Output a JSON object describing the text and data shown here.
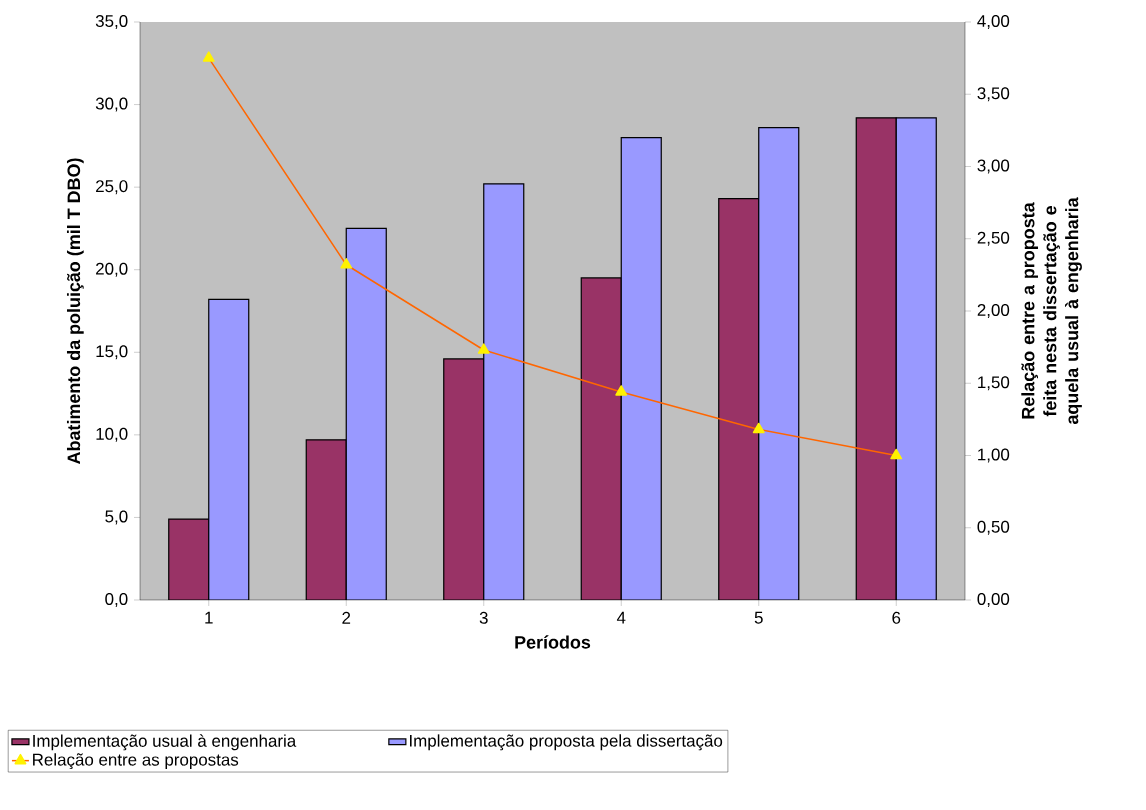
{
  "chart_data": {
    "type": "bar",
    "xlabel": "Períodos",
    "ylabel": "Abatimento da poluição (mil T DBO)",
    "y2label": "Relação entre a proposta feita nesta dissertação e aquela usual à engenharia",
    "categories": [
      "1",
      "2",
      "3",
      "4",
      "5",
      "6"
    ],
    "series": [
      {
        "name": "Implementação usual à engenharia",
        "color": "#993366",
        "values": [
          4.9,
          9.7,
          14.6,
          19.5,
          24.3,
          29.2
        ]
      },
      {
        "name": "Implementação proposta pela dissertação",
        "color": "#9999ff",
        "values": [
          18.2,
          22.5,
          25.2,
          28.0,
          28.6,
          29.2
        ]
      },
      {
        "name": "Relação entre as propostas",
        "type": "line",
        "axis": "y2",
        "color": "#ff6600",
        "marker": "triangle",
        "values": [
          3.75,
          2.32,
          1.73,
          1.44,
          1.18,
          1.0
        ]
      }
    ],
    "ylim": [
      0,
      35
    ],
    "yticks": [
      {
        "value": 0,
        "label": "0,0"
      },
      {
        "value": 5,
        "label": "5,0"
      },
      {
        "value": 10,
        "label": "10,0"
      },
      {
        "value": 15,
        "label": "15,0"
      },
      {
        "value": 20,
        "label": "20,0"
      },
      {
        "value": 25,
        "label": "25,0"
      },
      {
        "value": 30,
        "label": "30,0"
      },
      {
        "value": 35,
        "label": "35,0"
      }
    ],
    "y2lim": [
      0,
      4
    ],
    "y2ticks": [
      {
        "value": 0,
        "label": "0,00"
      },
      {
        "value": 0.5,
        "label": "0,50"
      },
      {
        "value": 1,
        "label": "1,00"
      },
      {
        "value": 1.5,
        "label": "1,50"
      },
      {
        "value": 2,
        "label": "2,00"
      },
      {
        "value": 2.5,
        "label": "2,50"
      },
      {
        "value": 3,
        "label": "3,00"
      },
      {
        "value": 3.5,
        "label": "3,50"
      },
      {
        "value": 4,
        "label": "4,00"
      }
    ],
    "grid": false,
    "legend": "bottom"
  }
}
